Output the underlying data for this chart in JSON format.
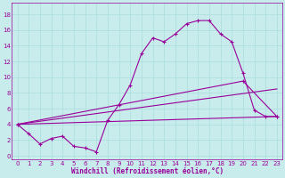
{
  "xlabel": "Windchill (Refroidissement éolien,°C)",
  "background_color": "#c8ecec",
  "grid_color": "#aadddd",
  "line_color": "#990099",
  "xlim": [
    -0.5,
    23.5
  ],
  "ylim": [
    -0.5,
    19.5
  ],
  "yticks": [
    0,
    2,
    4,
    6,
    8,
    10,
    12,
    14,
    16,
    18
  ],
  "xticks": [
    0,
    1,
    2,
    3,
    4,
    5,
    6,
    7,
    8,
    9,
    10,
    11,
    12,
    13,
    14,
    15,
    16,
    17,
    18,
    19,
    20,
    21,
    22,
    23
  ],
  "series1_x": [
    0,
    1,
    2,
    3,
    4,
    5,
    6,
    7,
    8,
    9,
    10,
    11,
    12,
    13,
    14,
    15,
    16,
    17,
    18,
    19,
    20,
    21,
    22,
    23
  ],
  "series1_y": [
    4.0,
    2.8,
    1.5,
    2.2,
    2.5,
    1.2,
    1.0,
    0.5,
    4.5,
    6.5,
    9.0,
    13.0,
    15.0,
    14.5,
    15.5,
    16.8,
    17.2,
    17.2,
    15.5,
    14.5,
    10.5,
    5.8,
    5.0,
    5.0
  ],
  "series2_x": [
    0,
    23
  ],
  "series2_y": [
    4.0,
    5.0
  ],
  "series3_x": [
    0,
    23
  ],
  "series3_y": [
    4.0,
    8.5
  ],
  "series4_x": [
    0,
    20,
    23
  ],
  "series4_y": [
    4.0,
    9.5,
    5.0
  ]
}
